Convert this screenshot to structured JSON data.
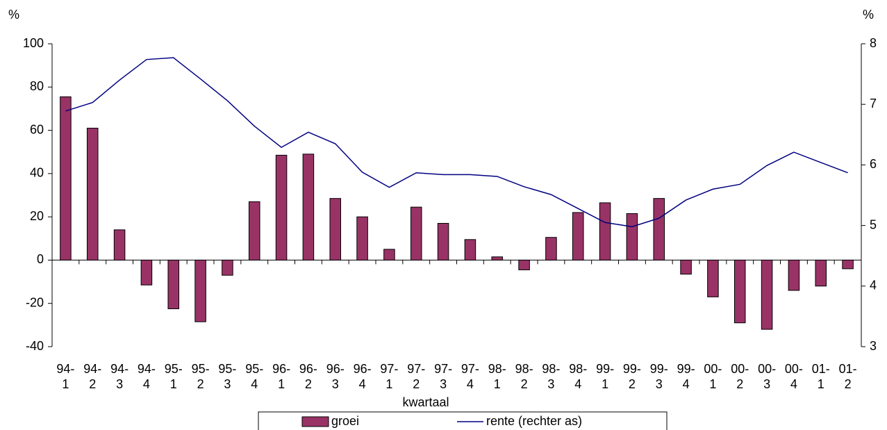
{
  "chart_data": {
    "type": "bar-line",
    "y_label": "%",
    "y2_label": "%",
    "x_label": "kwartaal",
    "categories": [
      "94-\n1",
      "94-\n2",
      "94-\n3",
      "94-\n4",
      "95-\n1",
      "95-\n2",
      "95-\n3",
      "95-\n4",
      "96-\n1",
      "96-\n2",
      "96-\n3",
      "96-\n4",
      "97-\n1",
      "97-\n2",
      "97-\n3",
      "97-\n4",
      "98-\n1",
      "98-\n2",
      "98-\n3",
      "98-\n4",
      "99-\n1",
      "99-\n2",
      "99-\n3",
      "99-\n4",
      "00-\n1",
      "00-\n2",
      "00-\n3",
      "00-\n4",
      "01-\n1",
      "01-\n2"
    ],
    "series": [
      {
        "name": "groei",
        "type": "bar",
        "color": "#993366",
        "values": [
          75.5,
          61,
          14,
          -11.5,
          -22.5,
          -28.5,
          -7,
          27,
          48.5,
          49,
          28.5,
          20,
          5,
          24.5,
          17,
          9.5,
          1.5,
          -4.5,
          10.5,
          22,
          26.5,
          21.5,
          28.5,
          -6.5,
          -17,
          -29,
          -32,
          -14,
          -12,
          -4
        ]
      },
      {
        "name": "rente (rechter as)",
        "type": "line",
        "axis": "y2",
        "color": "#000080",
        "values": [
          6.89,
          7.03,
          7.4,
          7.74,
          7.77,
          7.42,
          7.06,
          6.64,
          6.29,
          6.54,
          6.35,
          5.88,
          5.63,
          5.87,
          5.84,
          5.84,
          5.81,
          5.64,
          5.51,
          5.28,
          5.05,
          4.98,
          5.12,
          5.42,
          5.6,
          5.68,
          5.99,
          6.21,
          6.04,
          5.87
        ]
      }
    ],
    "ylim": [
      -40,
      100
    ],
    "yticks": [
      -40,
      -20,
      0,
      20,
      40,
      60,
      80,
      100
    ],
    "y2lim": [
      3,
      8
    ],
    "y2ticks": [
      3,
      4,
      5,
      6,
      7,
      8
    ],
    "grid": false,
    "legend": "bottom"
  }
}
